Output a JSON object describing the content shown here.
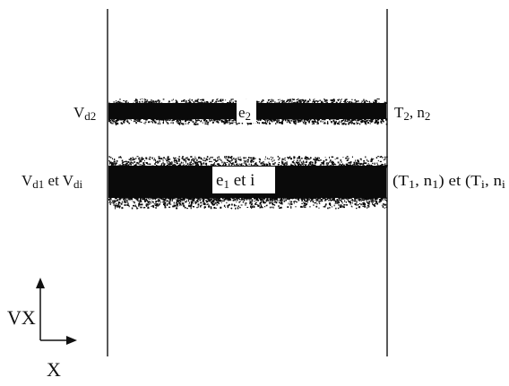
{
  "left_labels": {
    "band2": {
      "main": "V",
      "sub": "d2"
    },
    "band1": {
      "main1": "V",
      "sub1": "d1",
      "mid": " et ",
      "main2": "V",
      "sub2": "di"
    }
  },
  "band_labels": {
    "band2": {
      "main": "e",
      "sub": "2"
    },
    "band1": {
      "main1": "e",
      "sub1": "1",
      "rest": " et i"
    }
  },
  "right_labels": {
    "band2": {
      "main1": "T",
      "sub1": "2",
      "mid": ", n",
      "sub2": "2"
    },
    "band1": {
      "p1": "(T",
      "s1": "1",
      "p2": ", n",
      "s2": "1",
      "p3": ") et (T",
      "s3": "i",
      "p4": ", n",
      "s4": "i"
    }
  },
  "axes": {
    "vertical_label": "VX",
    "horizontal_label": "X"
  },
  "colors": {
    "ink": "#111111",
    "band": "#0a0a0a",
    "background": "#ffffff"
  }
}
